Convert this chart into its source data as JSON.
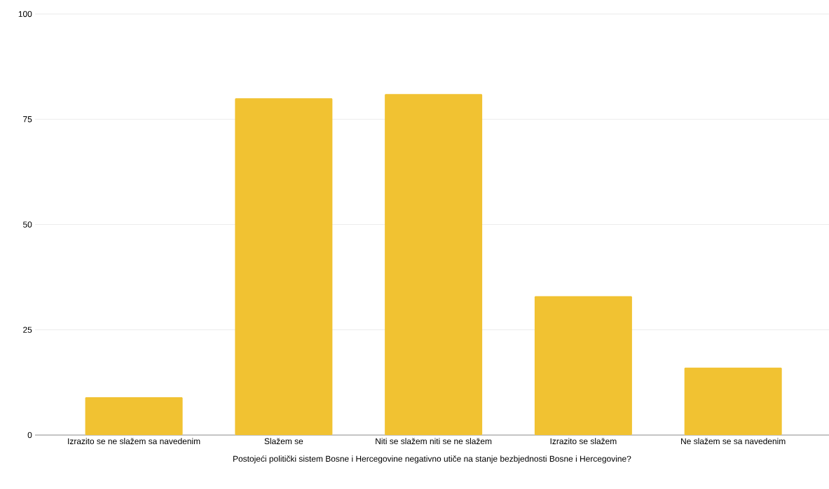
{
  "chart_data": {
    "type": "bar",
    "xlabel": "Postojeći politički sistem Bosne i Hercegovine negativno utiče na stanje bezbjednosti Bosne i Hercegovine?",
    "categories": [
      "Izrazito se ne slažem sa navedenim",
      "Slažem se",
      "Niti se slažem niti se ne slažem",
      "Izrazito se slažem",
      "Ne slažem se sa navedenim"
    ],
    "values": [
      9,
      80,
      81,
      33,
      16
    ],
    "color": "#f1c232",
    "ylim": [
      0,
      100
    ],
    "yticks": [
      0,
      25,
      50,
      75,
      100
    ],
    "grid": "y"
  }
}
